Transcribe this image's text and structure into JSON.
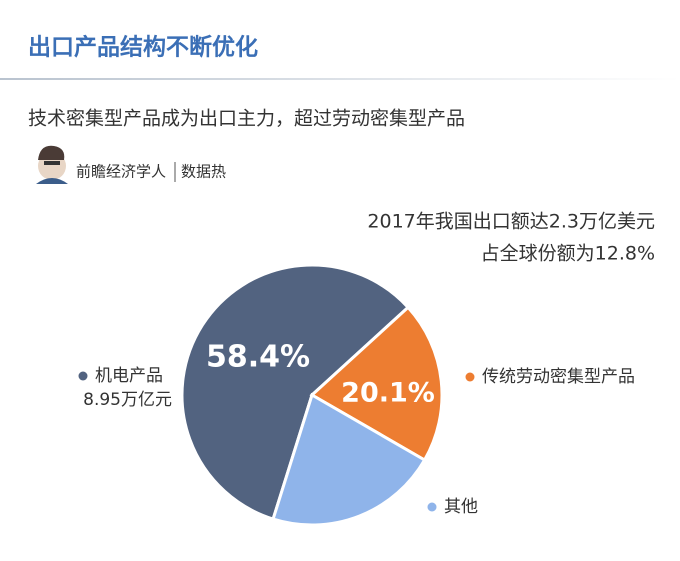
{
  "header": {
    "title": "出口产品结构不断优化",
    "subtitle": "技术密集型产品成为出口主力，超过劳动密集型产品",
    "source": "前瞻经济学人",
    "tag": "数据热"
  },
  "chart_data": {
    "type": "pie",
    "annotations": [
      "2017年我国出口额达2.3万亿美元",
      "占全球份额为12.8%"
    ],
    "categories": [
      "机电产品",
      "传统劳动密集型产品",
      "其他"
    ],
    "category_notes": [
      "8.95万亿元",
      null,
      null
    ],
    "values": [
      58.4,
      20.1,
      21.5
    ],
    "value_labels": [
      "58.4%",
      "20.1%",
      null
    ],
    "colors": [
      "#526380",
      "#ed7d31",
      "#8fb4ea"
    ]
  }
}
